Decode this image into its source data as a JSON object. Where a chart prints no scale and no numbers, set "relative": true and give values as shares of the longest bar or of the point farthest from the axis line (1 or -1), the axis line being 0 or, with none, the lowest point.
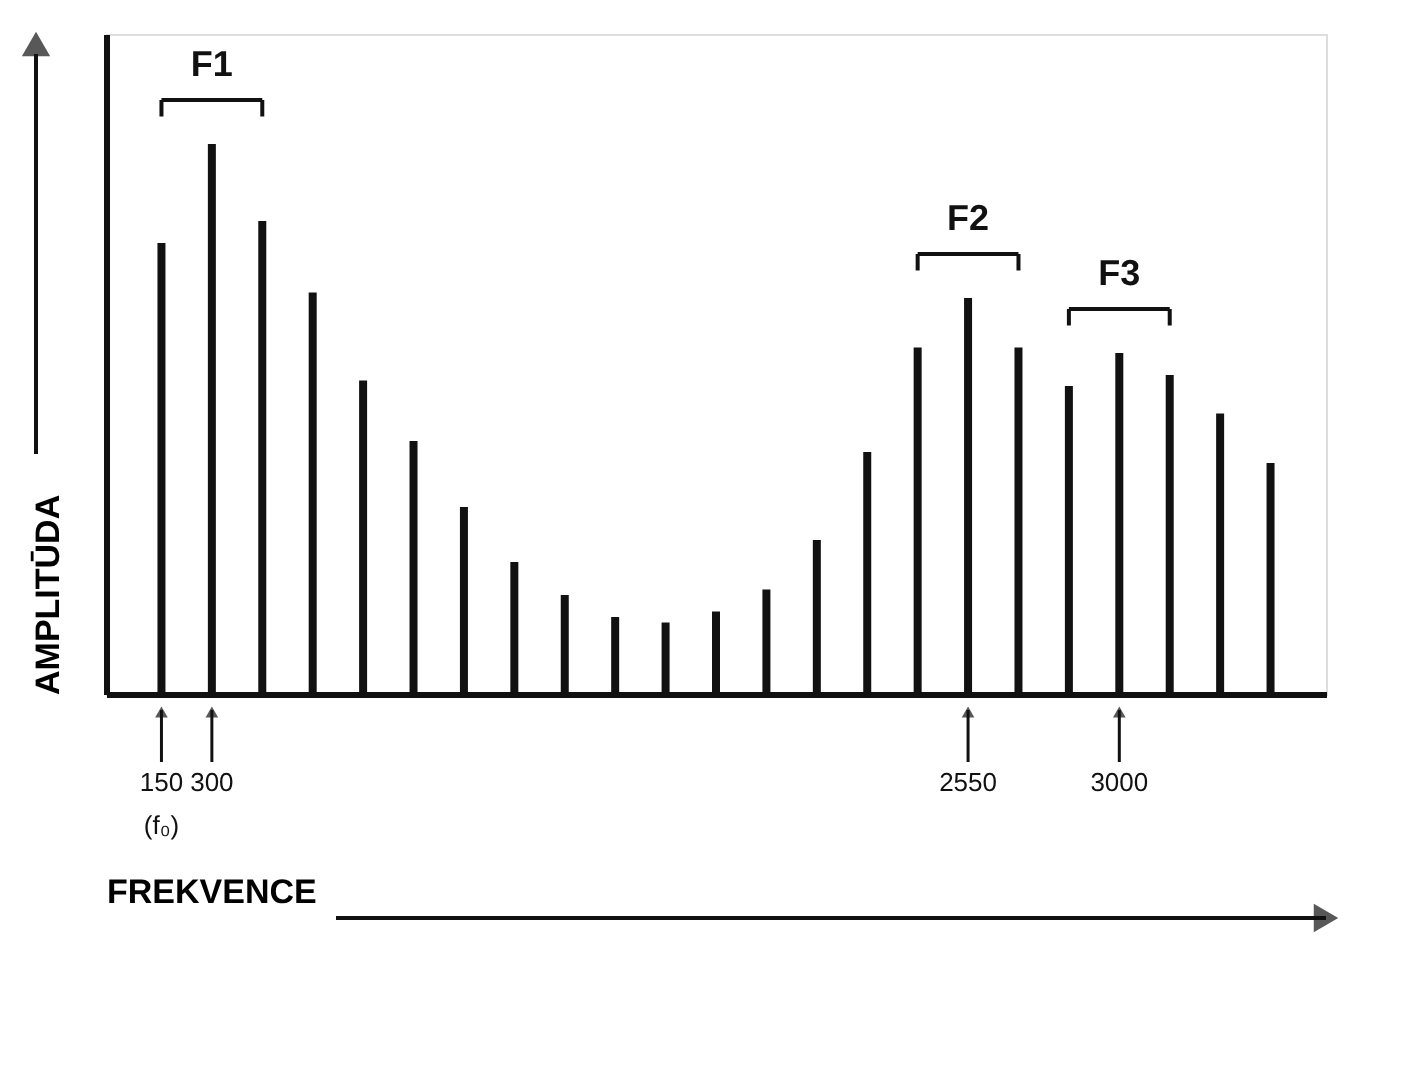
{
  "chart_data": {
    "type": "bar",
    "relative": true,
    "xlabel": "FREKVENCE",
    "ylabel": "AMPLITŪDA",
    "categories": [
      "150",
      "300",
      null,
      null,
      null,
      null,
      null,
      null,
      null,
      null,
      null,
      null,
      null,
      null,
      null,
      null,
      "2550",
      null,
      null,
      "3000",
      null,
      null,
      null
    ],
    "values": [
      0.82,
      1,
      0.86,
      0.73,
      0.57,
      0.46,
      0.34,
      0.24,
      0.18,
      0.14,
      0.13,
      0.15,
      0.19,
      0.28,
      0.44,
      0.63,
      0.72,
      0.63,
      0.56,
      0.62,
      0.58,
      0.51,
      0.42
    ],
    "color": "#111111",
    "grid": false,
    "annotations": [
      "F1",
      "F2",
      "F3",
      "(f₀)"
    ]
  }
}
